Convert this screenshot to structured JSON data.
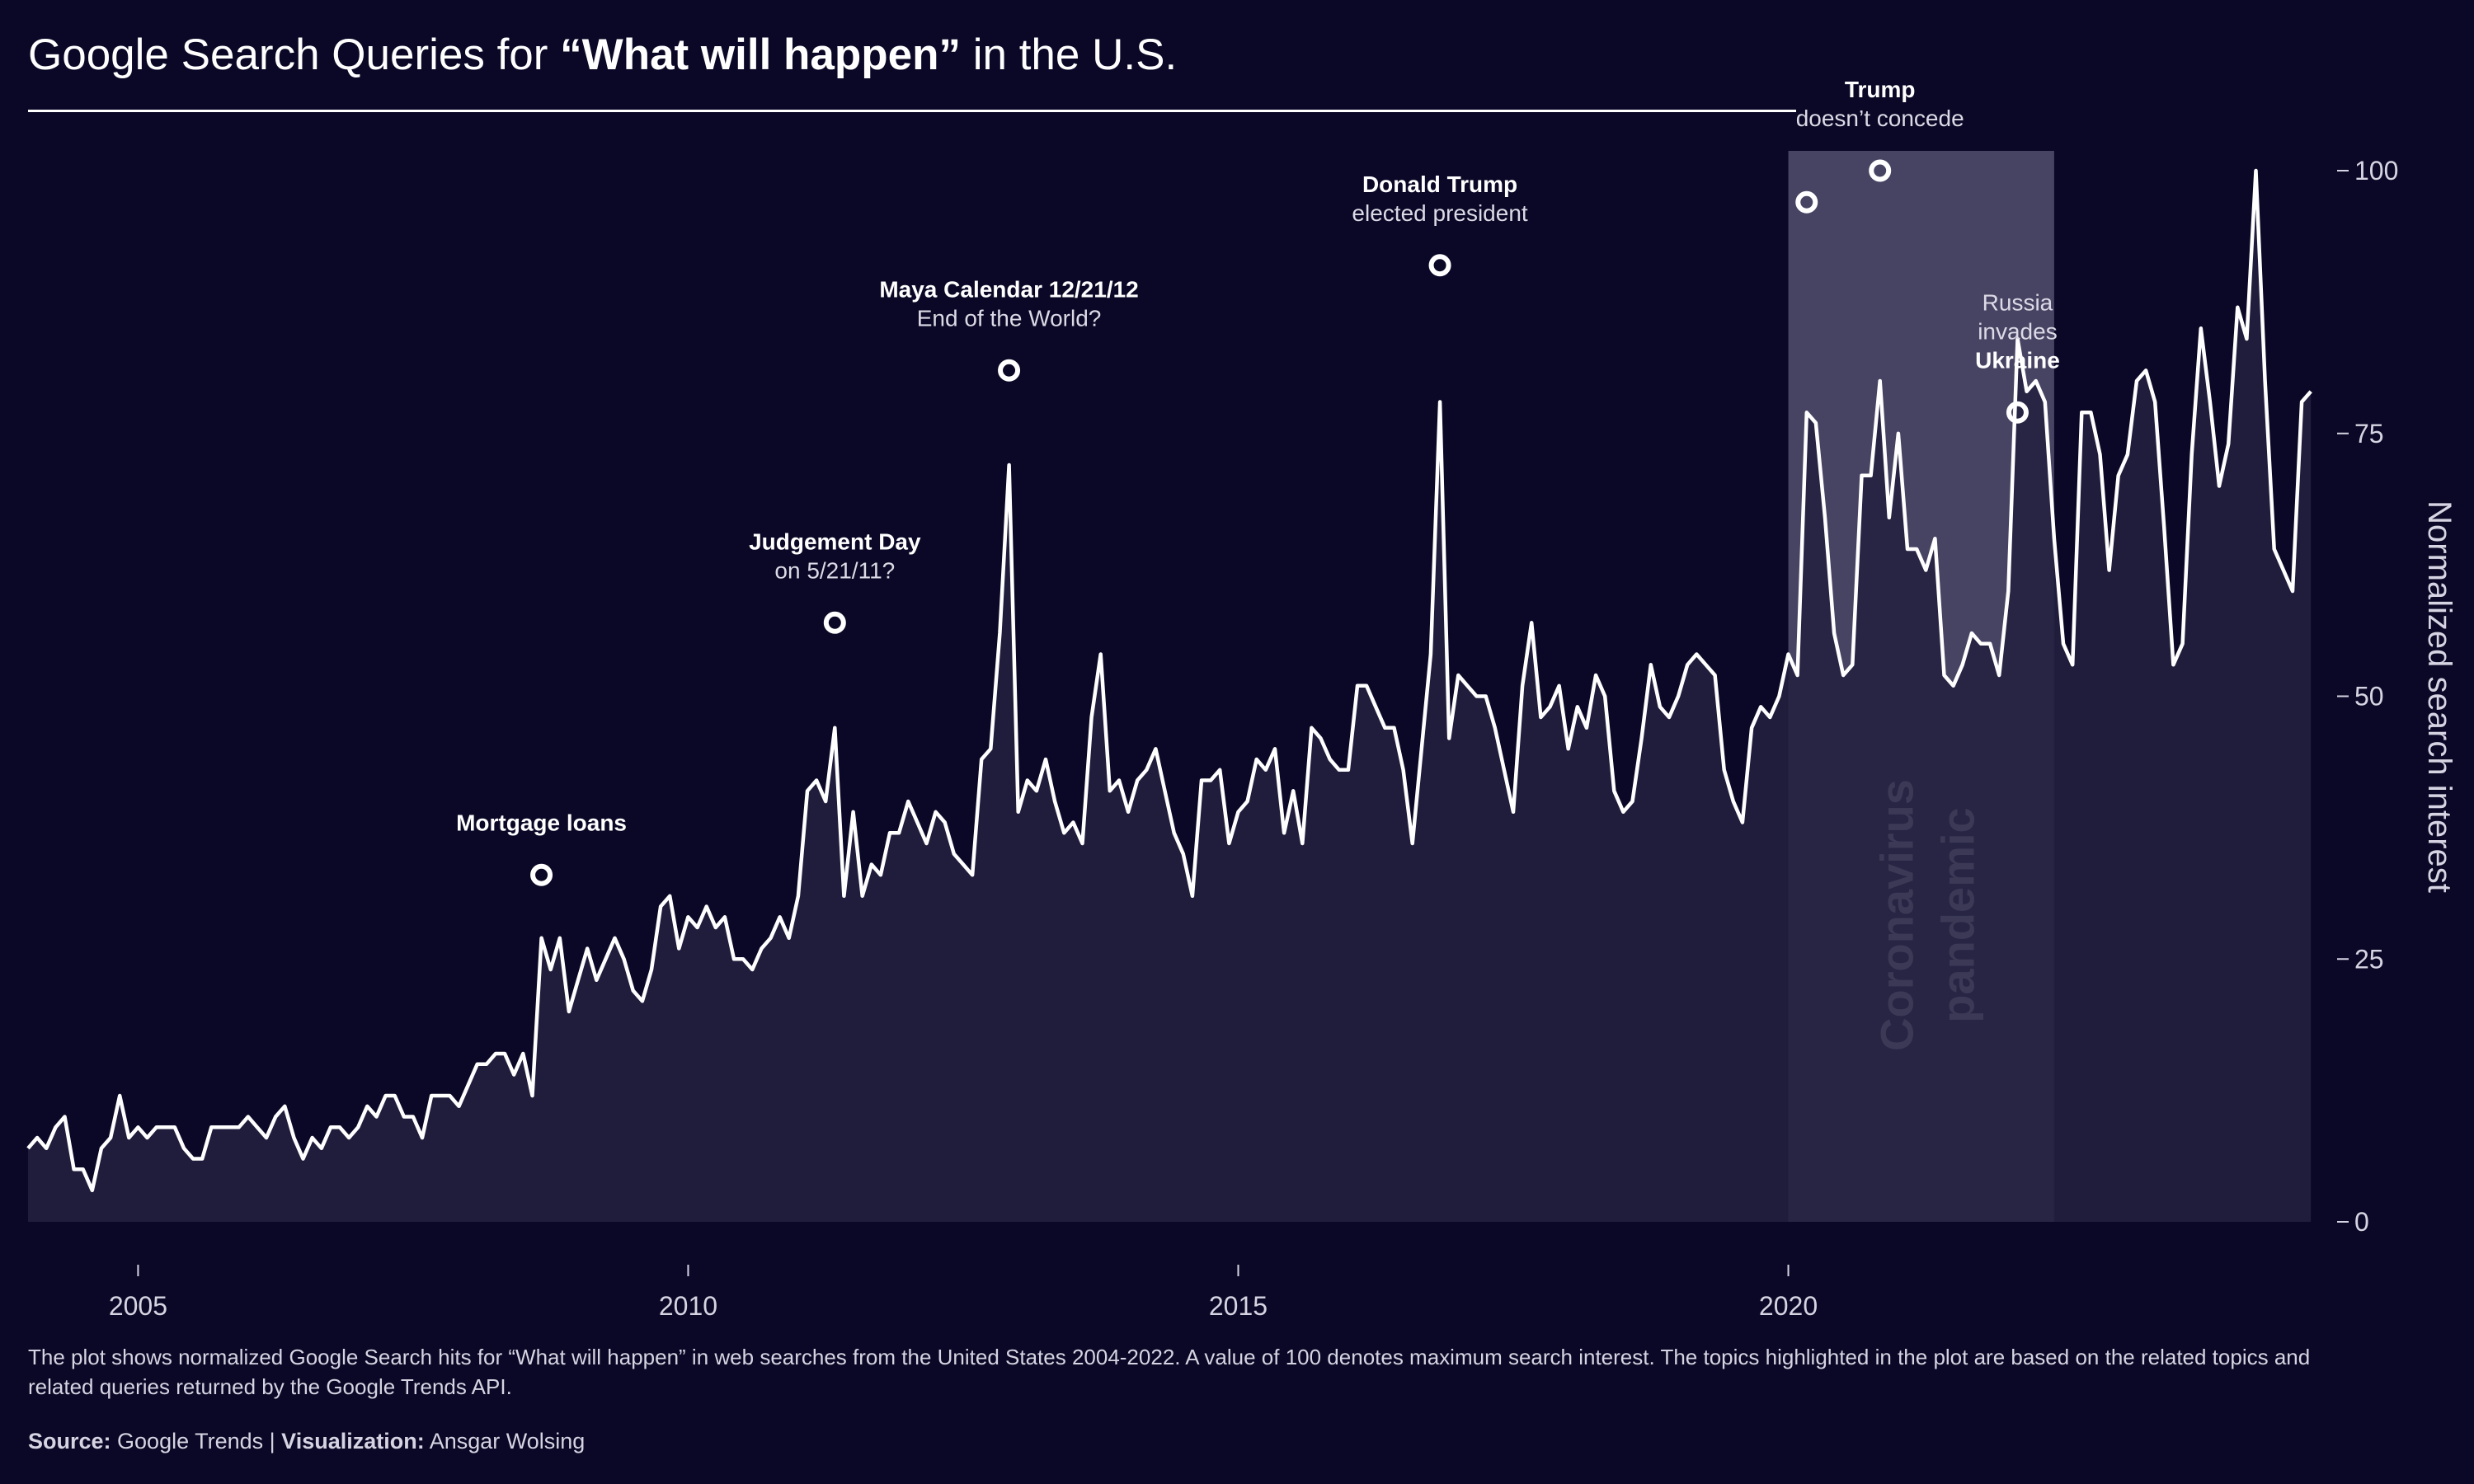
{
  "header": {
    "title_pre": "Google Search Queries for ",
    "title_bold": "“What will happen”",
    "title_post": " in the U.S."
  },
  "colors": {
    "background": "#0a0826",
    "line": "#ffffff",
    "area_fill": "#232040",
    "highlight_band": "#4b4866",
    "text_muted": "#d6d4e2"
  },
  "chart_data": {
    "type": "area",
    "title": "Google Search Queries for “What will happen” in the U.S.",
    "ylabel": "Normalized search interest",
    "xlabel": "",
    "x_start": "2004-01",
    "x_frequency": "monthly",
    "xlim": [
      "2004-01",
      "2024-12"
    ],
    "ylim": [
      0,
      100
    ],
    "x_ticks": [
      2005,
      2010,
      2015,
      2020
    ],
    "y_ticks": [
      0,
      25,
      50,
      75,
      100
    ],
    "grid": false,
    "values": [
      7,
      8,
      7,
      9,
      10,
      5,
      5,
      3,
      7,
      8,
      12,
      8,
      9,
      8,
      9,
      9,
      9,
      7,
      6,
      6,
      9,
      9,
      9,
      9,
      10,
      9,
      8,
      10,
      11,
      8,
      6,
      8,
      7,
      9,
      9,
      8,
      9,
      11,
      10,
      12,
      12,
      10,
      10,
      8,
      12,
      12,
      12,
      11,
      13,
      15,
      15,
      16,
      16,
      14,
      16,
      12,
      27,
      24,
      27,
      20,
      23,
      26,
      23,
      25,
      27,
      25,
      22,
      21,
      24,
      30,
      31,
      26,
      29,
      28,
      30,
      28,
      29,
      25,
      25,
      24,
      26,
      27,
      29,
      27,
      31,
      41,
      42,
      40,
      47,
      31,
      39,
      31,
      34,
      33,
      37,
      37,
      40,
      38,
      36,
      39,
      38,
      35,
      34,
      33,
      44,
      45,
      56,
      72,
      39,
      42,
      41,
      44,
      40,
      37,
      38,
      36,
      48,
      54,
      41,
      42,
      39,
      42,
      43,
      45,
      41,
      37,
      35,
      31,
      42,
      42,
      43,
      36,
      39,
      40,
      44,
      43,
      45,
      37,
      41,
      36,
      47,
      46,
      44,
      43,
      43,
      51,
      51,
      49,
      47,
      47,
      43,
      36,
      45,
      54,
      78,
      46,
      52,
      51,
      50,
      50,
      47,
      43,
      39,
      51,
      57,
      48,
      49,
      51,
      45,
      49,
      47,
      52,
      50,
      41,
      39,
      40,
      46,
      53,
      49,
      48,
      50,
      53,
      54,
      53,
      52,
      43,
      40,
      38,
      47,
      49,
      48,
      50,
      54,
      52,
      77,
      76,
      67,
      56,
      52,
      53,
      71,
      71,
      80,
      67,
      75,
      64,
      64,
      62,
      65,
      52,
      51,
      53,
      56,
      55,
      55,
      52,
      60,
      84,
      79,
      80,
      78,
      65,
      55,
      53,
      77,
      77,
      73,
      62,
      71,
      73,
      80,
      81,
      78,
      66,
      53,
      55,
      73,
      85,
      78,
      70,
      74,
      87,
      84,
      100,
      80,
      64,
      62,
      60,
      78,
      79
    ],
    "highlight": {
      "label": [
        "Coronavirus",
        "pandemic"
      ],
      "start": "2020-01",
      "end": "2022-06"
    },
    "annotations": [
      {
        "date": "2008-09",
        "y": 33,
        "lines": [
          {
            "text": "Mortgage loans",
            "bold": true
          }
        ],
        "label_pos": "above"
      },
      {
        "date": "2011-05",
        "y": 57,
        "lines": [
          {
            "text": "Judgement Day",
            "bold": true
          },
          {
            "text": "on 5/21/11?",
            "bold": false
          }
        ],
        "label_pos": "above"
      },
      {
        "date": "2012-12",
        "y": 81,
        "lines": [
          {
            "text": "Maya Calendar 12/21/12",
            "bold": true
          },
          {
            "text": "End of the World?",
            "bold": false
          }
        ],
        "label_pos": "above"
      },
      {
        "date": "2016-11",
        "y": 91,
        "lines": [
          {
            "text": "Donald Trump",
            "bold": true
          },
          {
            "text": "elected president",
            "bold": false
          }
        ],
        "label_pos": "above"
      },
      {
        "date": "2020-03",
        "y": 97,
        "lines": [],
        "label_pos": "none"
      },
      {
        "date": "2020-11",
        "y": 100,
        "lines": [
          {
            "text": "Trump",
            "bold": true
          },
          {
            "text": "doesn’t concede",
            "bold": false
          }
        ],
        "label_pos": "above"
      },
      {
        "date": "2022-02",
        "y": 77,
        "lines": [
          {
            "text": "Russia",
            "bold": false
          },
          {
            "text": "invades",
            "bold": false
          },
          {
            "text": "Ukraine",
            "bold": true
          }
        ],
        "label_pos": "above"
      }
    ]
  },
  "footer": {
    "caption": "The plot shows normalized Google Search hits for “What will happen” in web searches from the United States 2004-2022. A value of 100 denotes maximum search interest. The topics highlighted in the plot are based on the related topics and related queries returned by the Google Trends API.",
    "source_label": "Source:",
    "source_value": " Google Trends | ",
    "viz_label": "Visualization:",
    "viz_value": " Ansgar Wolsing"
  }
}
